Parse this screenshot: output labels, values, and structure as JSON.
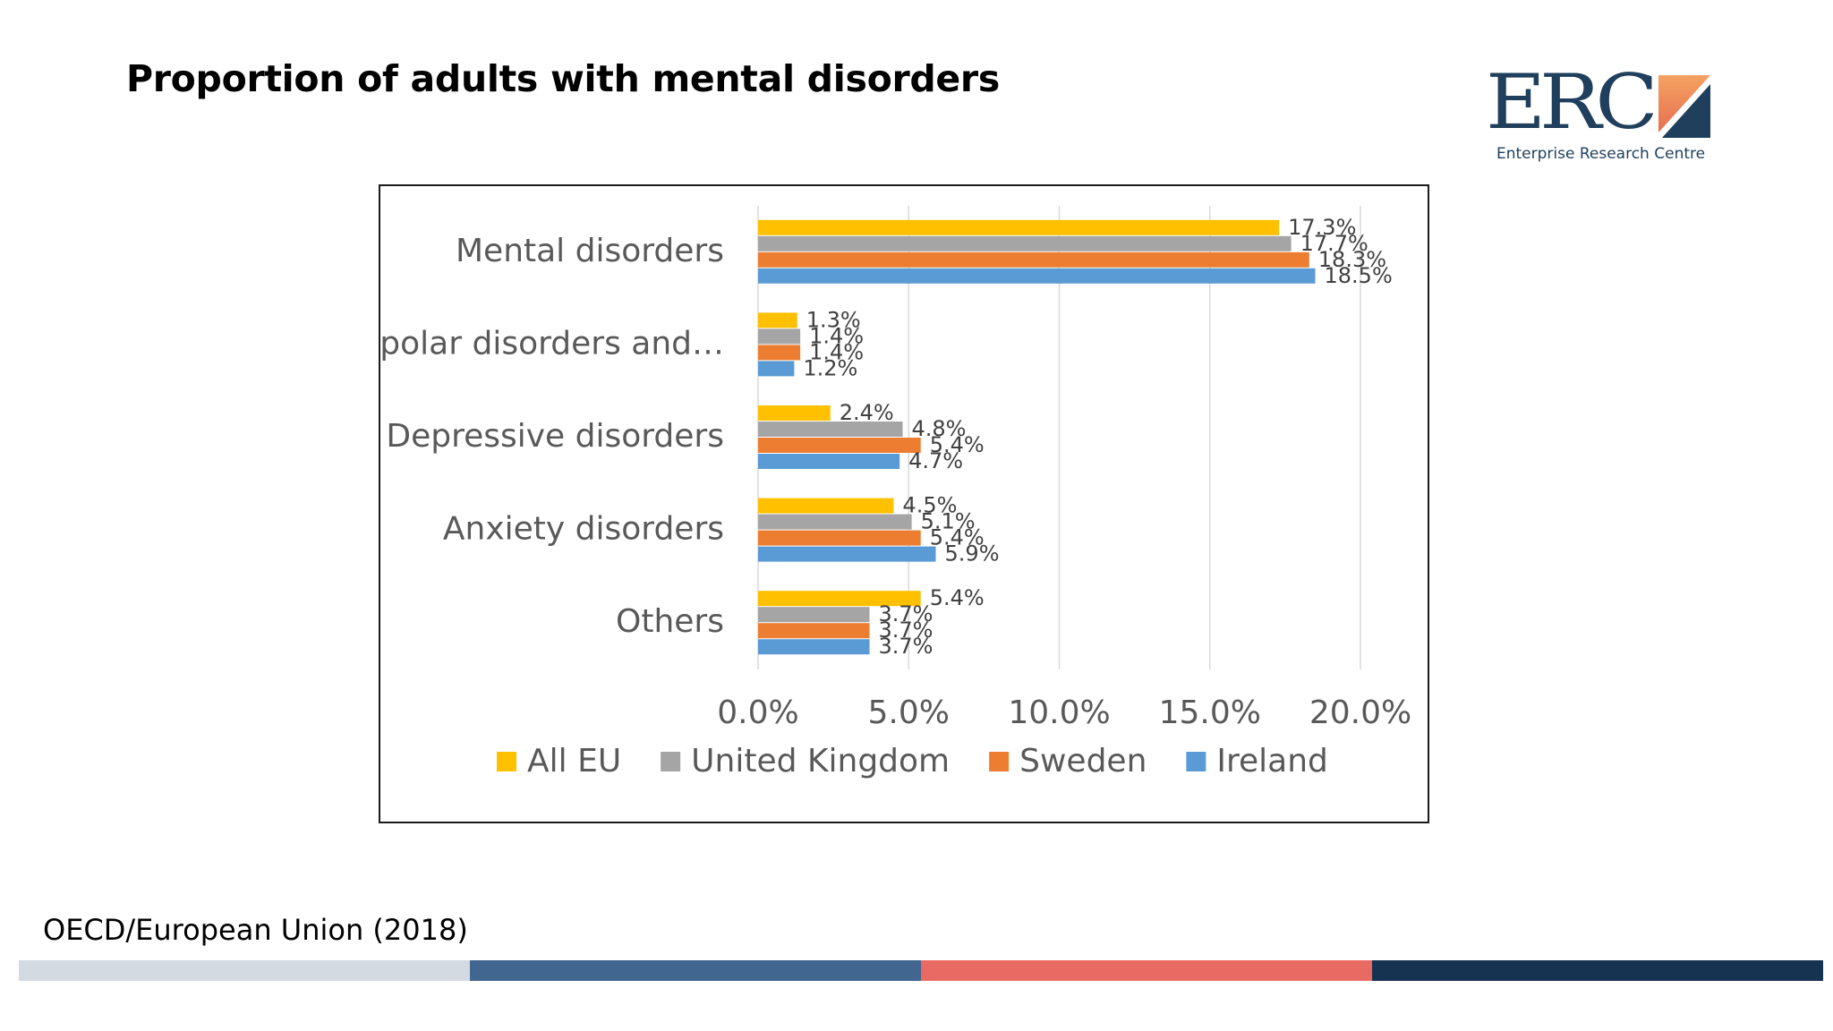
{
  "slide": {
    "title": "Proportion of adults with mental disorders",
    "source": "OECD/European Union (2018)"
  },
  "logo": {
    "letters": "ERC",
    "subtitle": "Enterprise Research Centre",
    "color": "#1f3f5c",
    "mark_gradient": [
      "#f4a261",
      "#e76f51"
    ],
    "mark_dark": "#1f3f5c"
  },
  "footer": {
    "colors": [
      "#d3dae1",
      "#41668f",
      "#e86a62",
      "#163452"
    ]
  },
  "chart_data": {
    "type": "bar",
    "orientation": "horizontal",
    "categories": [
      "Mental disorders",
      "Bipolar disorders and…",
      "Depressive disorders",
      "Anxiety disorders",
      "Others"
    ],
    "series": [
      {
        "name": "All EU",
        "color": "#ffc000",
        "values": [
          17.3,
          1.3,
          2.4,
          4.5,
          5.4
        ],
        "labels": [
          "17.3%",
          "1.3%",
          "2.4%",
          "4.5%",
          "5.4%"
        ]
      },
      {
        "name": "United Kingdom",
        "color": "#a5a5a5",
        "values": [
          17.7,
          1.4,
          4.8,
          5.1,
          3.7
        ],
        "labels": [
          "17.7%",
          "1.4%",
          "4.8%",
          "5.1%",
          "3.7%"
        ]
      },
      {
        "name": "Sweden",
        "color": "#ed7d31",
        "values": [
          18.3,
          1.4,
          5.4,
          5.4,
          3.7
        ],
        "labels": [
          "18.3%",
          "1.4%",
          "5.4%",
          "5.4%",
          "3.7%"
        ]
      },
      {
        "name": "Ireland",
        "color": "#5b9bd5",
        "values": [
          18.5,
          1.2,
          4.7,
          5.9,
          3.7
        ],
        "labels": [
          "18.5%",
          "1.2%",
          "4.7%",
          "5.9%",
          "3.7%"
        ]
      }
    ],
    "xlim": [
      0,
      20
    ],
    "xticks": [
      0,
      5,
      10,
      15,
      20
    ],
    "xtick_labels": [
      "0.0%",
      "5.0%",
      "10.0%",
      "15.0%",
      "20.0%"
    ],
    "grid": true,
    "legend": "bottom"
  }
}
